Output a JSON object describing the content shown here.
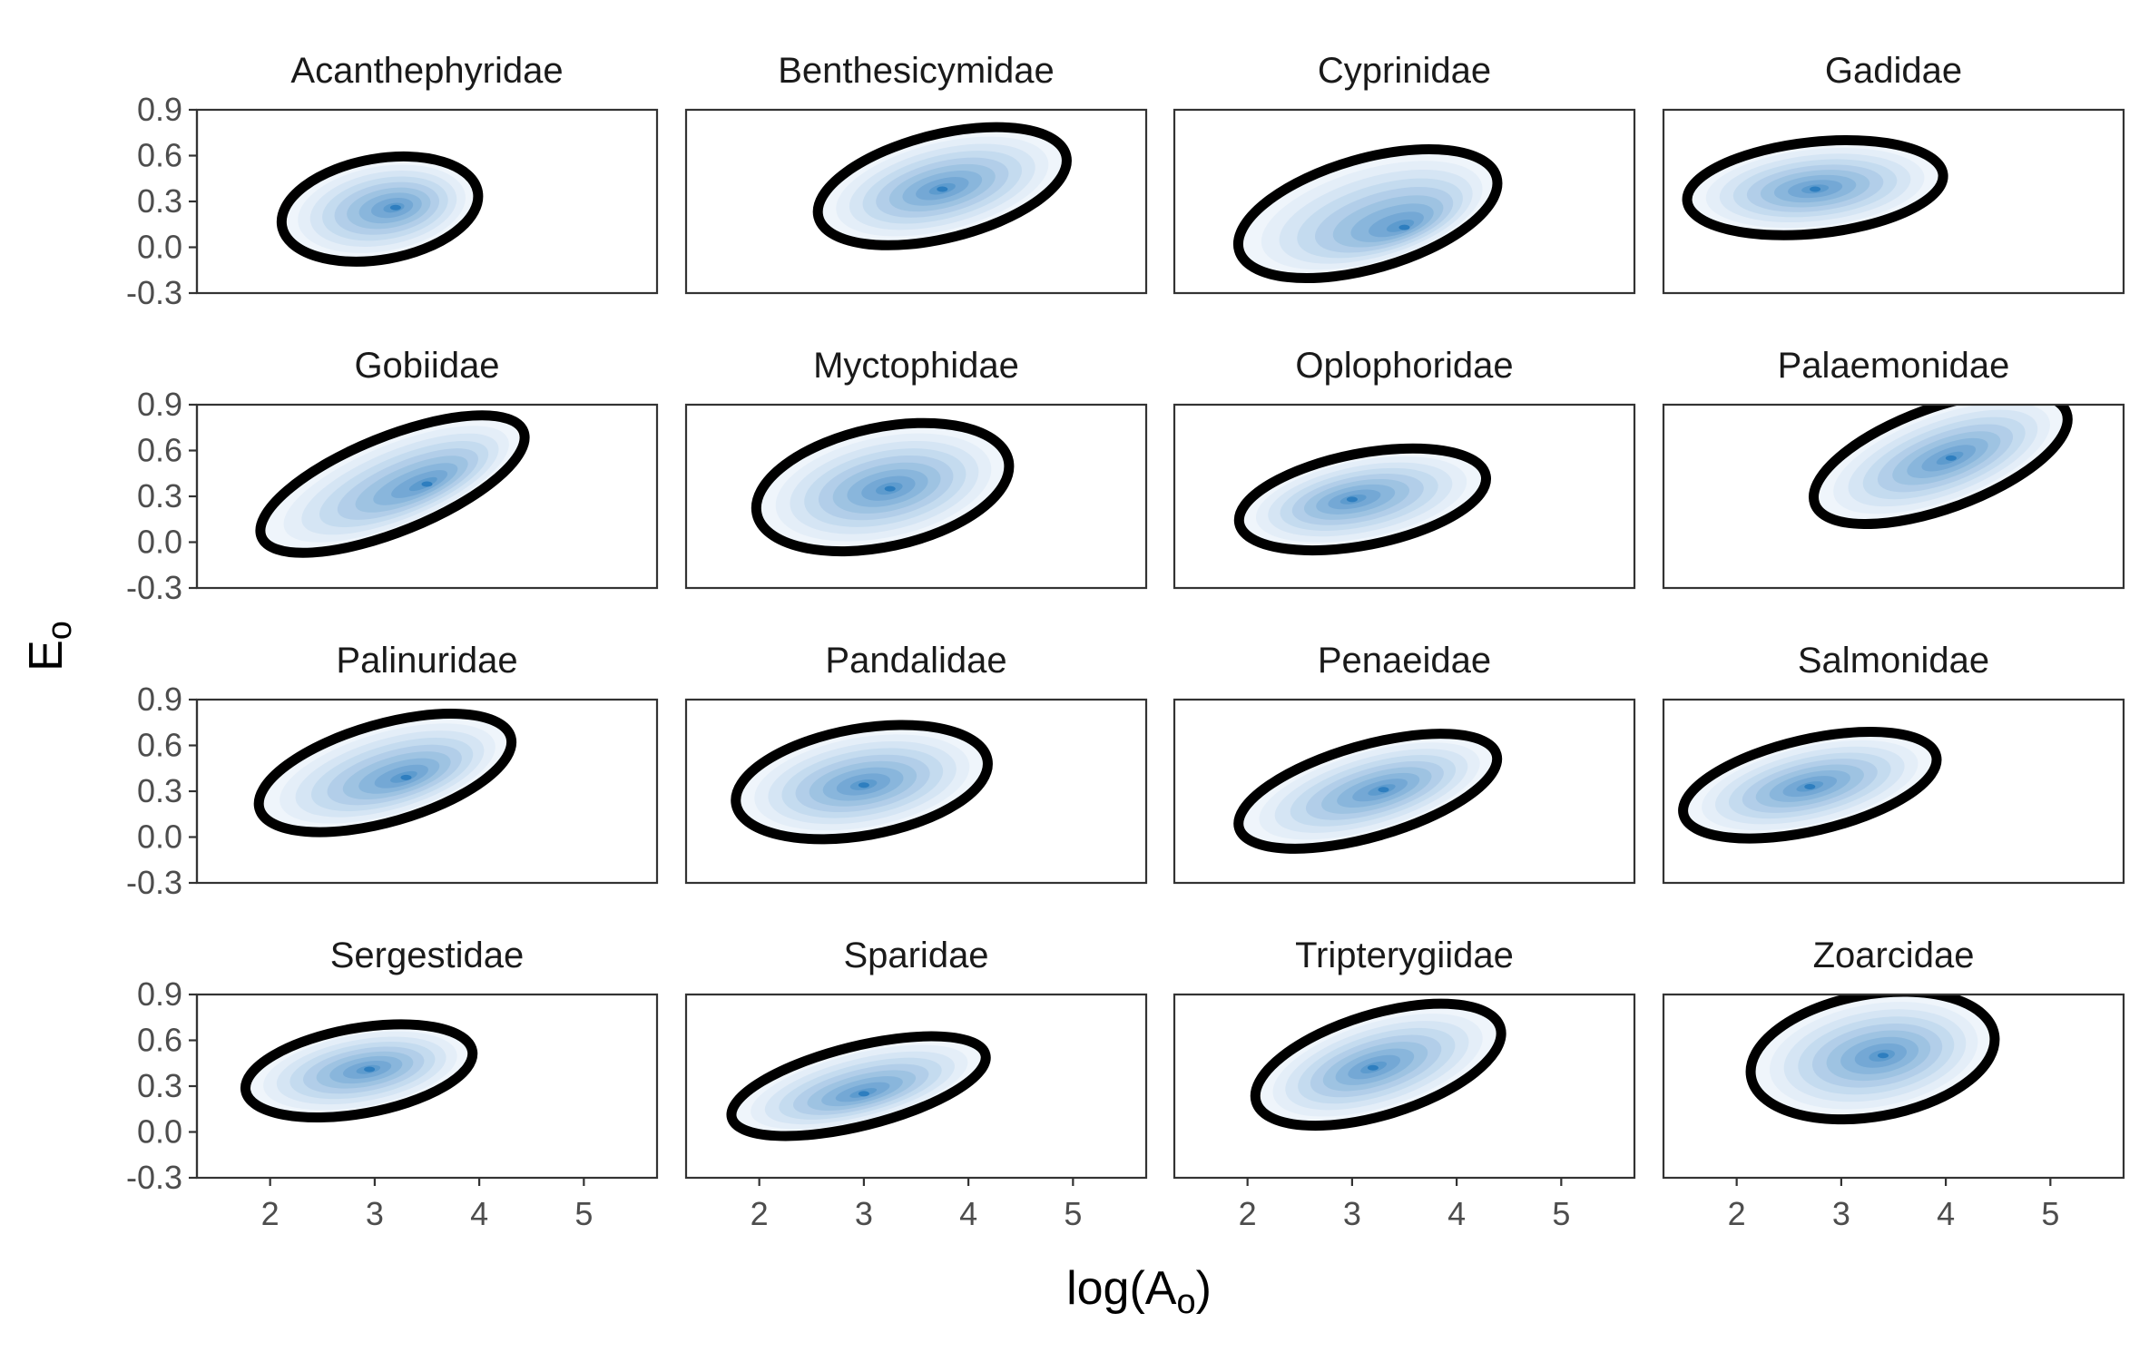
{
  "chart_data": {
    "type": "density-contour-facets",
    "xlabel": "log(A",
    "xlabel_sub": "o",
    "xlabel_close": ")",
    "ylabel": "E",
    "ylabel_sub": "o",
    "xlim": [
      1.3,
      5.7
    ],
    "ylim": [
      -0.3,
      0.9
    ],
    "x_ticks": [
      "2",
      "3",
      "4",
      "5"
    ],
    "x_tick_values": [
      2,
      3,
      4,
      5
    ],
    "y_ticks": [
      "0.9",
      "0.6",
      "0.3",
      "0.0",
      "-0.3"
    ],
    "y_tick_values": [
      0.9,
      0.6,
      0.3,
      0.0,
      -0.3
    ],
    "fill_light": "#eef4fb",
    "fill_dark": "#2e7ebf",
    "ellipse_color": "#000000",
    "facets": [
      {
        "name": "Acanthephyridae",
        "cx": 3.05,
        "cy": 0.25,
        "rx": 0.95,
        "ry": 0.33,
        "angle": 10,
        "peak": [
          3.2,
          0.26
        ],
        "spread": 0.55
      },
      {
        "name": "Benthesicymidae",
        "cx": 3.75,
        "cy": 0.4,
        "rx": 1.22,
        "ry": 0.34,
        "angle": 14,
        "peak": [
          3.75,
          0.38
        ],
        "spread": 0.65
      },
      {
        "name": "Cyprinidae",
        "cx": 3.15,
        "cy": 0.22,
        "rx": 1.28,
        "ry": 0.36,
        "angle": 16,
        "peak": [
          3.5,
          0.13
        ],
        "spread": 0.6
      },
      {
        "name": "Gadidae",
        "cx": 2.75,
        "cy": 0.39,
        "rx": 1.23,
        "ry": 0.3,
        "angle": 6,
        "peak": [
          2.75,
          0.38
        ],
        "spread": 0.65
      },
      {
        "name": "Gobiidae",
        "cx": 3.17,
        "cy": 0.38,
        "rx": 1.35,
        "ry": 0.31,
        "angle": 22,
        "peak": [
          3.5,
          0.38
        ],
        "spread": 0.6
      },
      {
        "name": "Myctophidae",
        "cx": 3.18,
        "cy": 0.36,
        "rx": 1.23,
        "ry": 0.39,
        "angle": 12,
        "peak": [
          3.25,
          0.35
        ],
        "spread": 0.55
      },
      {
        "name": "Oplophoridae",
        "cx": 3.1,
        "cy": 0.28,
        "rx": 1.2,
        "ry": 0.3,
        "angle": 11,
        "peak": [
          3.0,
          0.28
        ],
        "spread": 0.6
      },
      {
        "name": "Palaemonidae",
        "cx": 3.95,
        "cy": 0.55,
        "rx": 1.28,
        "ry": 0.33,
        "angle": 20,
        "peak": [
          4.05,
          0.55
        ],
        "spread": 0.6
      },
      {
        "name": "Palinuridae",
        "cx": 3.1,
        "cy": 0.42,
        "rx": 1.25,
        "ry": 0.32,
        "angle": 16,
        "peak": [
          3.3,
          0.39
        ],
        "spread": 0.6
      },
      {
        "name": "Pandalidae",
        "cx": 2.98,
        "cy": 0.36,
        "rx": 1.22,
        "ry": 0.35,
        "angle": 10,
        "peak": [
          3.0,
          0.34
        ],
        "spread": 0.6
      },
      {
        "name": "Penaeidae",
        "cx": 3.15,
        "cy": 0.3,
        "rx": 1.28,
        "ry": 0.3,
        "angle": 16,
        "peak": [
          3.3,
          0.31
        ],
        "spread": 0.6
      },
      {
        "name": "Salmonidae",
        "cx": 2.7,
        "cy": 0.34,
        "rx": 1.24,
        "ry": 0.3,
        "angle": 13,
        "peak": [
          2.7,
          0.33
        ],
        "spread": 0.6
      },
      {
        "name": "Sergestidae",
        "cx": 2.85,
        "cy": 0.4,
        "rx": 1.1,
        "ry": 0.28,
        "angle": 10,
        "peak": [
          2.95,
          0.41
        ],
        "spread": 0.55
      },
      {
        "name": "Sparidae",
        "cx": 2.95,
        "cy": 0.3,
        "rx": 1.25,
        "ry": 0.26,
        "angle": 14,
        "peak": [
          3.0,
          0.25
        ],
        "spread": 0.6
      },
      {
        "name": "Tripterygiidae",
        "cx": 3.25,
        "cy": 0.44,
        "rx": 1.22,
        "ry": 0.33,
        "angle": 17,
        "peak": [
          3.2,
          0.42
        ],
        "spread": 0.6
      },
      {
        "name": "Zoarcidae",
        "cx": 3.3,
        "cy": 0.5,
        "rx": 1.18,
        "ry": 0.4,
        "angle": 10,
        "peak": [
          3.4,
          0.5
        ],
        "spread": 0.6
      }
    ]
  }
}
